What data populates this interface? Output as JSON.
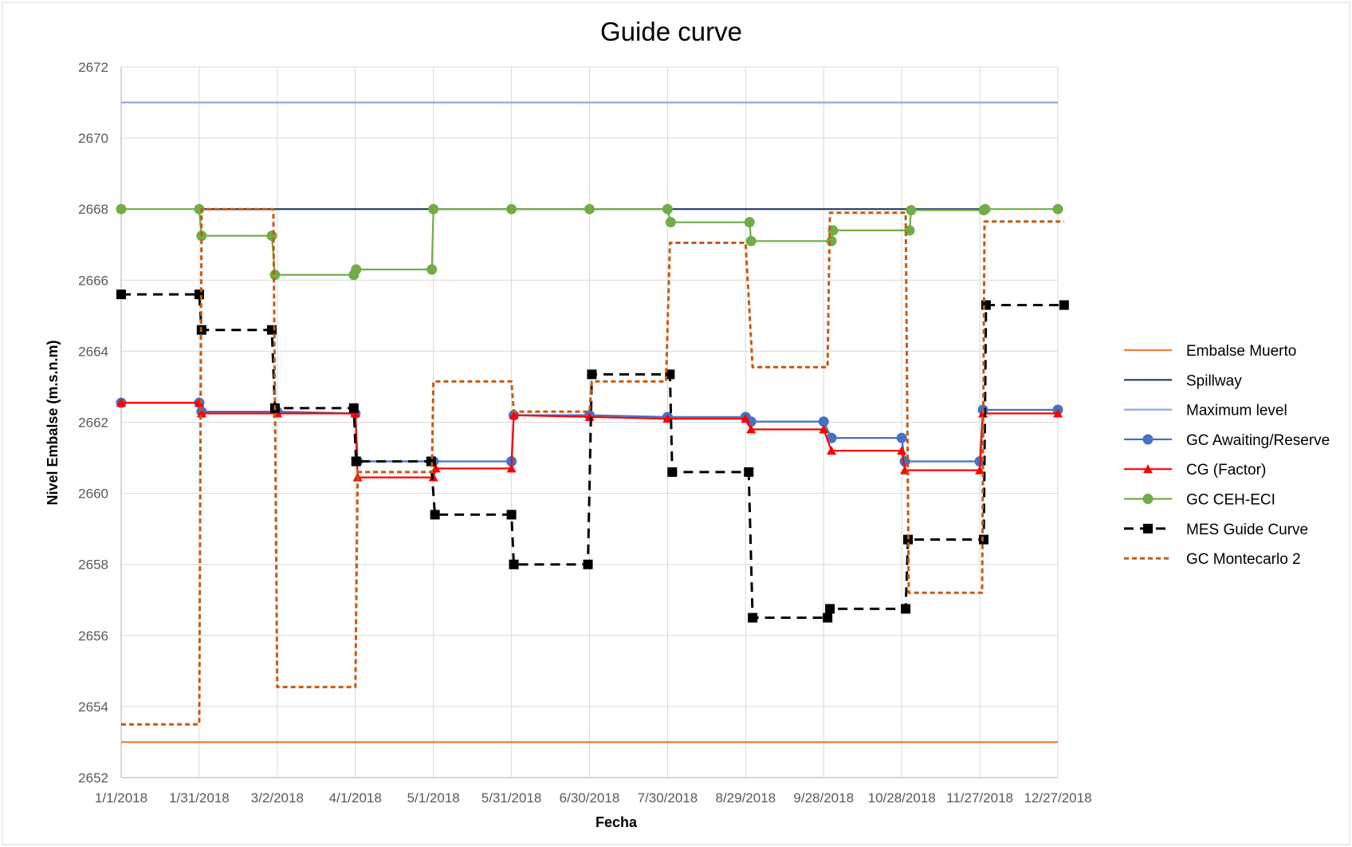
{
  "chart_data": {
    "type": "line",
    "title": "Guide curve",
    "xlabel": "Fecha",
    "ylabel": "Nivel Embalse (m.s.n.m)",
    "ylim": [
      2652,
      2672
    ],
    "ytick_step": 2,
    "grid": true,
    "legend_position": "right",
    "categories": [
      "1/1/2018",
      "1/31/2018",
      "3/2/2018",
      "4/1/2018",
      "5/1/2018",
      "5/31/2018",
      "6/30/2018",
      "7/30/2018",
      "8/29/2018",
      "9/28/2018",
      "10/28/2018",
      "11/27/2018",
      "12/27/2018"
    ],
    "series": [
      {
        "name": "Embalse Muerto",
        "color": "#ED7D31",
        "style": "solid",
        "marker": "none",
        "points": [
          [
            0,
            2653
          ],
          [
            12,
            2653
          ]
        ]
      },
      {
        "name": "Spillway",
        "color": "#203864",
        "style": "solid",
        "marker": "none",
        "points": [
          [
            1,
            2668
          ],
          [
            11,
            2668
          ]
        ]
      },
      {
        "name": "Maximum level",
        "color": "#8FAADC",
        "style": "solid",
        "marker": "none",
        "points": [
          [
            0,
            2671
          ],
          [
            12,
            2671
          ]
        ]
      },
      {
        "name": "GC Awaiting/Reserve",
        "color": "#4472C4",
        "style": "solid",
        "marker": "circle",
        "points": [
          [
            0,
            2662.55
          ],
          [
            1,
            2662.55
          ],
          [
            1.03,
            2662.3
          ],
          [
            2,
            2662.3
          ],
          [
            3,
            2662.25
          ],
          [
            3.03,
            2660.9
          ],
          [
            4,
            2660.9
          ],
          [
            5,
            2660.9
          ],
          [
            5.03,
            2662.2
          ],
          [
            6,
            2662.2
          ],
          [
            7,
            2662.15
          ],
          [
            8,
            2662.15
          ],
          [
            8.07,
            2662.02
          ],
          [
            9,
            2662.02
          ],
          [
            9.1,
            2661.56
          ],
          [
            10,
            2661.56
          ],
          [
            10.04,
            2660.9
          ],
          [
            11,
            2660.9
          ],
          [
            11.04,
            2662.35
          ],
          [
            12,
            2662.35
          ]
        ]
      },
      {
        "name": "CG (Factor)",
        "color": "#FF0000",
        "style": "solid",
        "marker": "triangle",
        "points": [
          [
            0,
            2662.55
          ],
          [
            1,
            2662.55
          ],
          [
            1.03,
            2662.25
          ],
          [
            2,
            2662.25
          ],
          [
            3,
            2662.25
          ],
          [
            3.03,
            2660.45
          ],
          [
            4,
            2660.45
          ],
          [
            4.03,
            2660.7
          ],
          [
            5,
            2660.7
          ],
          [
            5.03,
            2662.2
          ],
          [
            6,
            2662.15
          ],
          [
            7,
            2662.1
          ],
          [
            8,
            2662.1
          ],
          [
            8.07,
            2661.8
          ],
          [
            9,
            2661.8
          ],
          [
            9.1,
            2661.2
          ],
          [
            10,
            2661.2
          ],
          [
            10.04,
            2660.65
          ],
          [
            11,
            2660.65
          ],
          [
            11.04,
            2662.25
          ],
          [
            12,
            2662.25
          ]
        ]
      },
      {
        "name": "GC CEH-ECI",
        "color": "#70AD47",
        "style": "solid",
        "marker": "circle",
        "points": [
          [
            0,
            2668
          ],
          [
            1,
            2668
          ],
          [
            1.03,
            2667.25
          ],
          [
            1.93,
            2667.25
          ],
          [
            1.97,
            2666.15
          ],
          [
            2.98,
            2666.15
          ],
          [
            3.01,
            2666.3
          ],
          [
            3.98,
            2666.3
          ],
          [
            4,
            2668
          ],
          [
            5,
            2668
          ],
          [
            6,
            2668
          ],
          [
            7,
            2668
          ],
          [
            7.04,
            2667.63
          ],
          [
            8.05,
            2667.63
          ],
          [
            8.07,
            2667.1
          ],
          [
            9.1,
            2667.1
          ],
          [
            9.12,
            2667.4
          ],
          [
            10.1,
            2667.4
          ],
          [
            10.12,
            2667.97
          ],
          [
            11.05,
            2667.97
          ],
          [
            11.07,
            2668
          ],
          [
            12,
            2668
          ]
        ]
      },
      {
        "name": "MES Guide Curve",
        "color": "#000000",
        "style": "dash",
        "marker": "square",
        "points": [
          [
            0,
            2665.6
          ],
          [
            1,
            2665.6
          ],
          [
            1.03,
            2664.6
          ],
          [
            1.93,
            2664.6
          ],
          [
            1.97,
            2662.4
          ],
          [
            2.98,
            2662.4
          ],
          [
            3.01,
            2660.9
          ],
          [
            3.97,
            2660.9
          ],
          [
            4.02,
            2659.4
          ],
          [
            5,
            2659.4
          ],
          [
            5.03,
            2658
          ],
          [
            5.98,
            2658
          ],
          [
            6.03,
            2663.35
          ],
          [
            7.03,
            2663.35
          ],
          [
            7.06,
            2660.6
          ],
          [
            8.04,
            2660.6
          ],
          [
            8.09,
            2656.5
          ],
          [
            9.05,
            2656.5
          ],
          [
            9.08,
            2656.75
          ],
          [
            10.05,
            2656.75
          ],
          [
            10.08,
            2658.7
          ],
          [
            11.05,
            2658.7
          ],
          [
            11.08,
            2665.3
          ],
          [
            12.08,
            2665.3
          ]
        ]
      },
      {
        "name": "GC Montecarlo 2",
        "color": "#C55A11",
        "style": "shortdash",
        "marker": "none",
        "points": [
          [
            0,
            2653.5
          ],
          [
            1,
            2653.5
          ],
          [
            1.03,
            2668
          ],
          [
            1.95,
            2668
          ],
          [
            2,
            2654.55
          ],
          [
            3,
            2654.55
          ],
          [
            3.03,
            2660.6
          ],
          [
            3.98,
            2660.6
          ],
          [
            4,
            2663.15
          ],
          [
            5,
            2663.15
          ],
          [
            5.03,
            2662.3
          ],
          [
            6,
            2662.3
          ],
          [
            6.03,
            2663.15
          ],
          [
            6.98,
            2663.15
          ],
          [
            7.03,
            2667.05
          ],
          [
            8,
            2667.05
          ],
          [
            8.09,
            2663.55
          ],
          [
            9.05,
            2663.55
          ],
          [
            9.08,
            2667.9
          ],
          [
            10.05,
            2667.9
          ],
          [
            10.09,
            2657.2
          ],
          [
            11.03,
            2657.2
          ],
          [
            11.06,
            2667.65
          ],
          [
            12.08,
            2667.65
          ]
        ]
      }
    ]
  }
}
